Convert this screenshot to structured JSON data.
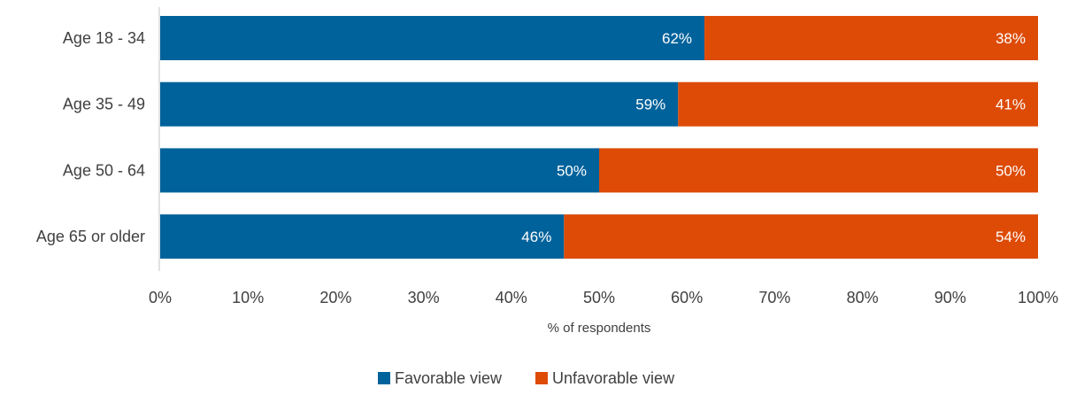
{
  "chart_data": {
    "type": "bar",
    "orientation": "horizontal",
    "stacked": true,
    "categories": [
      "Age 18 - 34",
      "Age 35 - 49",
      "Age 50 - 64",
      "Age 65 or older"
    ],
    "series": [
      {
        "name": "Favorable view",
        "values": [
          62,
          59,
          50,
          46
        ],
        "labels": [
          "62%",
          "59%",
          "50%",
          "46%"
        ],
        "color": "#00629b"
      },
      {
        "name": "Unfavorable view",
        "values": [
          38,
          41,
          50,
          54
        ],
        "labels": [
          "38%",
          "41%",
          "50%",
          "54%"
        ],
        "color": "#dd4b07"
      }
    ],
    "xlabel": "% of respondents",
    "xlim": [
      0,
      100
    ],
    "xticks": [
      "0%",
      "10%",
      "20%",
      "30%",
      "40%",
      "50%",
      "60%",
      "70%",
      "80%",
      "90%",
      "100%"
    ],
    "grid": false,
    "legend_position": "bottom"
  }
}
